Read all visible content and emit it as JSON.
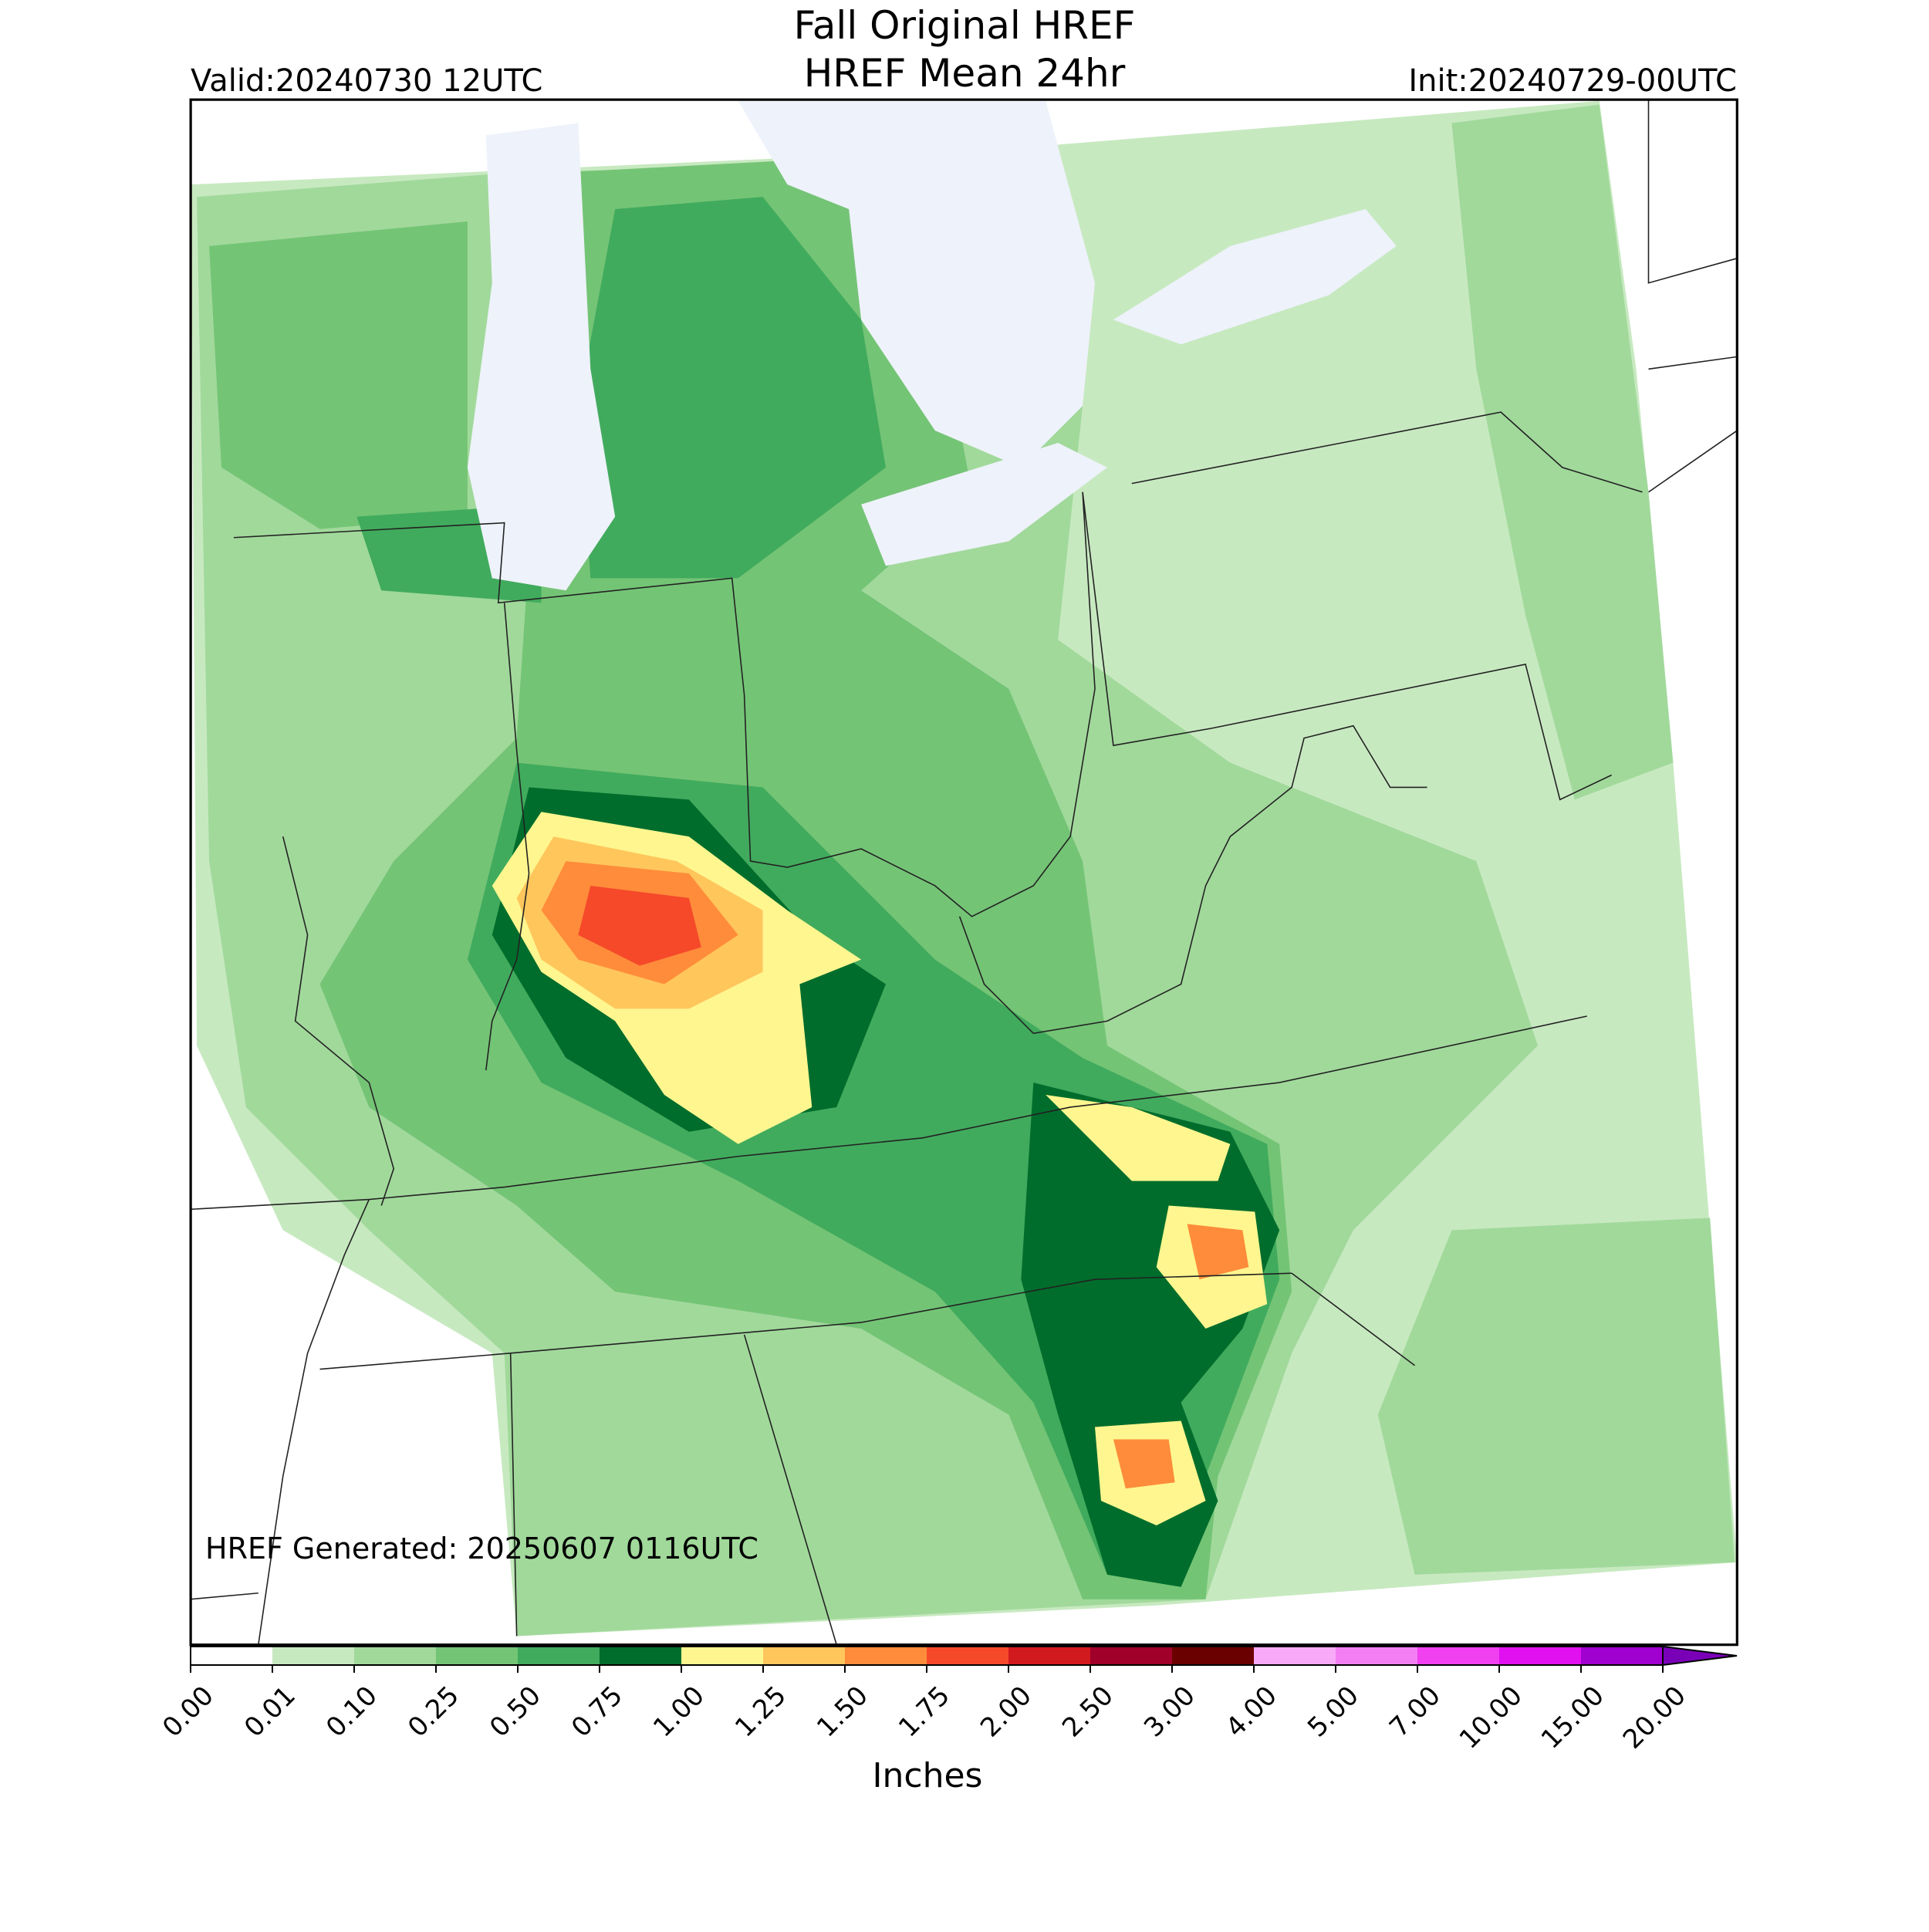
{
  "header": {
    "title": "Fall Original HREF",
    "subtitle": "HREF Mean 24hr",
    "valid": "Valid:20240730 12UTC",
    "init": "Init:20240729-00UTC"
  },
  "annotation": "HREF Generated: 20250607 0116UTC",
  "colorbar": {
    "label": "Inches",
    "ticks": [
      {
        "value": 0,
        "label": "0.00"
      },
      {
        "value": 0.01,
        "label": "0.01"
      },
      {
        "value": 0.1,
        "label": "0.10"
      },
      {
        "value": 0.25,
        "label": "0.25"
      },
      {
        "value": 0.5,
        "label": "0.50"
      },
      {
        "value": 0.75,
        "label": "0.75"
      },
      {
        "value": 1,
        "label": "1.00"
      },
      {
        "value": 1.25,
        "label": "1.25"
      },
      {
        "value": 1.5,
        "label": "1.50"
      },
      {
        "value": 1.75,
        "label": "1.75"
      },
      {
        "value": 2,
        "label": "2.00"
      },
      {
        "value": 2.5,
        "label": "2.50"
      },
      {
        "value": 3,
        "label": "3.00"
      },
      {
        "value": 4,
        "label": "4.00"
      },
      {
        "value": 5,
        "label": "5.00"
      },
      {
        "value": 7,
        "label": "7.00"
      },
      {
        "value": 10,
        "label": "10.00"
      },
      {
        "value": 15,
        "label": "15.00"
      },
      {
        "value": 20,
        "label": "20.00"
      }
    ],
    "colors": [
      "#ffffff",
      "#c7e9c0",
      "#a1d99b",
      "#74c476",
      "#41ab5d",
      "#006d2c",
      "#fff68f",
      "#ffc65c",
      "#ff8c3a",
      "#f5492a",
      "#d11a1e",
      "#a0002a",
      "#6b0000",
      "#f8aaf8",
      "#f37ef3",
      "#f040f0",
      "#e010f0",
      "#a000d0"
    ],
    "extend_color": "#7a00b8"
  }
}
